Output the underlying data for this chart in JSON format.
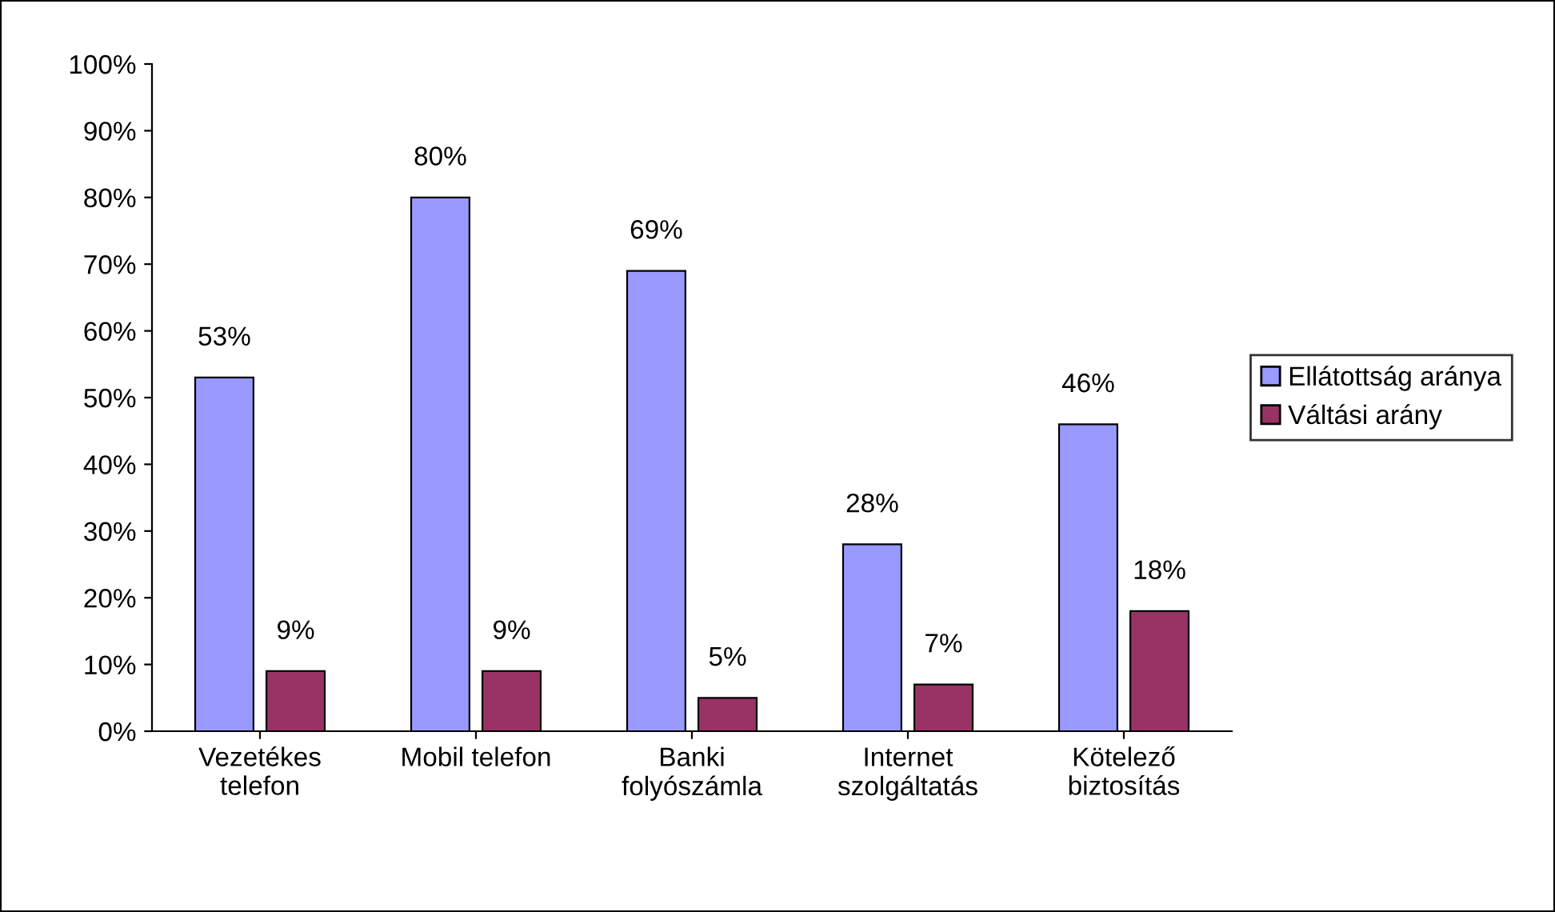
{
  "chart_data": {
    "type": "bar",
    "categories": [
      "Vezetékes\ntelefon",
      "Mobil telefon",
      "Banki\nfolyószámla",
      "Internet\nszolgáltatás",
      "Kötelező\nbiztosítás"
    ],
    "series": [
      {
        "name": "Ellátottság aránya",
        "color": "#9999ff",
        "values": [
          53,
          80,
          69,
          28,
          46
        ],
        "value_labels": [
          "53%",
          "80%",
          "69%",
          "28%",
          "46%"
        ]
      },
      {
        "name": "Váltási arány",
        "color": "#993366",
        "values": [
          9,
          9,
          5,
          7,
          18
        ],
        "value_labels": [
          "9%",
          "9%",
          "5%",
          "7%",
          "18%"
        ]
      }
    ],
    "ylim": [
      0,
      100
    ],
    "yticks": [
      {
        "value": 0,
        "label": "0%"
      },
      {
        "value": 10,
        "label": "10%"
      },
      {
        "value": 20,
        "label": "20%"
      },
      {
        "value": 30,
        "label": "30%"
      },
      {
        "value": 40,
        "label": "40%"
      },
      {
        "value": 50,
        "label": "50%"
      },
      {
        "value": 60,
        "label": "60%"
      },
      {
        "value": 70,
        "label": "70%"
      },
      {
        "value": 80,
        "label": "80%"
      },
      {
        "value": 90,
        "label": "90%"
      },
      {
        "value": 100,
        "label": "100%"
      }
    ],
    "grid": false,
    "legend": "right"
  }
}
